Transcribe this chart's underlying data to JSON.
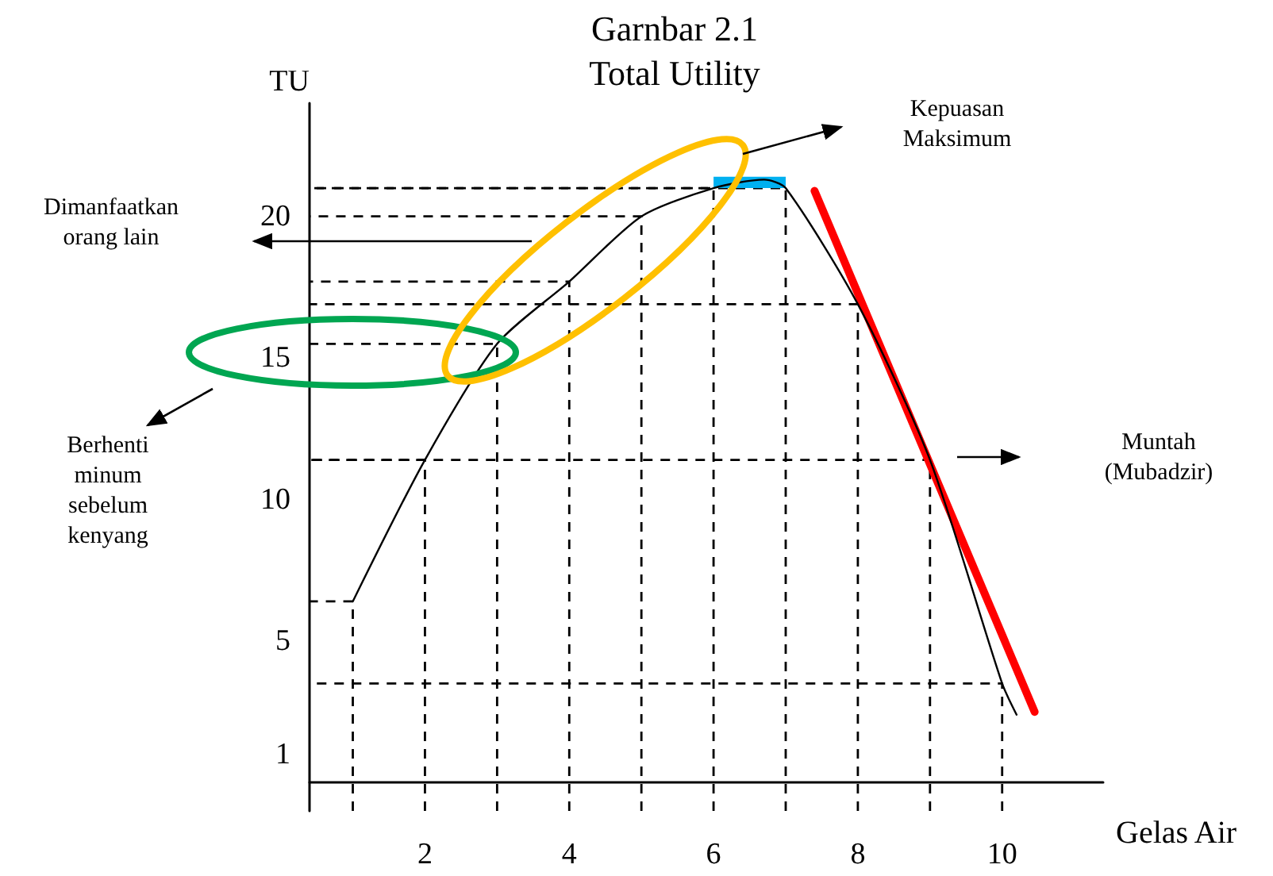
{
  "chart_data": {
    "type": "line",
    "title": "Garnbar 2.1",
    "subtitle": "Total Utility",
    "xlabel": "Gelas Air",
    "ylabel": "TU",
    "xlim": [
      0.4,
      11.4
    ],
    "xticks": [
      2,
      4,
      6,
      8,
      10
    ],
    "ylim": [
      -1,
      24
    ],
    "yticks": [
      1,
      5,
      10,
      15,
      20
    ],
    "marker": "none",
    "line_style": "solid",
    "series": [
      {
        "color": "#000000",
        "x": [
          1,
          2,
          3,
          4,
          5,
          6,
          6.7,
          7,
          8,
          9,
          10,
          10.2
        ],
        "values": [
          6.4,
          11.4,
          15.5,
          17.7,
          20,
          21,
          21.3,
          21,
          16.9,
          11.4,
          3.5,
          2.4
        ]
      },
      {
        "color": "#ff0000",
        "x": [
          7.4,
          10.45
        ],
        "values": [
          20.9,
          2.5
        ]
      },
      {
        "type": "bar",
        "color": "#00b0f0",
        "x": [
          6.5
        ],
        "base": [
          21
        ],
        "values": [
          0.4
        ]
      },
      {
        "color": "#000000",
        "line_style": "dashed",
        "x": [
          1,
          1,
          0.4
        ],
        "values": [
          -1,
          6.4,
          6.4
        ]
      },
      {
        "color": "#000000",
        "line_style": "dashed",
        "x": [
          2,
          2,
          0.4
        ],
        "values": [
          -1,
          11.4,
          11.4
        ]
      },
      {
        "color": "#000000",
        "line_style": "dashed",
        "x": [
          3,
          3,
          0.4
        ],
        "values": [
          -1,
          15.5,
          15.5
        ]
      },
      {
        "color": "#000000",
        "line_style": "dashed",
        "x": [
          4,
          4,
          0.4
        ],
        "values": [
          -1,
          17.7,
          17.7
        ]
      },
      {
        "color": "#000000",
        "line_style": "dashed",
        "x": [
          5,
          5,
          0.4
        ],
        "values": [
          -1,
          20,
          20
        ]
      },
      {
        "color": "#000000",
        "line_style": "dashed",
        "x": [
          6,
          6,
          0.4
        ],
        "values": [
          -1,
          21,
          21
        ]
      },
      {
        "color": "#000000",
        "line_style": "dashed",
        "x": [
          7,
          7,
          0.4
        ],
        "values": [
          -1,
          21,
          21
        ]
      },
      {
        "color": "#000000",
        "line_style": "dashed",
        "x": [
          8,
          8,
          0.4
        ],
        "values": [
          -1,
          16.9,
          16.9
        ]
      },
      {
        "color": "#000000",
        "line_style": "dashed",
        "x": [
          9,
          9,
          0.4
        ],
        "values": [
          -1,
          11.4,
          11.4
        ]
      },
      {
        "color": "#000000",
        "line_style": "dashed",
        "x": [
          10,
          10,
          0.4
        ],
        "values": [
          -1,
          3.5,
          3.5
        ]
      }
    ],
    "annotations": [
      "Kepuasan Maksimum",
      "Dimanfaatkan orang lain",
      "Berhenti minum sebelum kenyang",
      "Muntah (Mubadzir)"
    ]
  }
}
